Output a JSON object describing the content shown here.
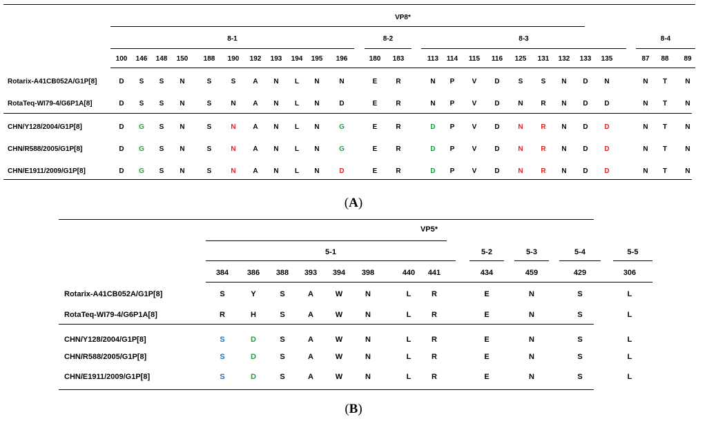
{
  "panel_a": {
    "main_title": "VP8*",
    "groups": [
      {
        "label": "8-1",
        "cols": [
          "100",
          "146",
          "148",
          "150",
          "188",
          "190",
          "192",
          "193",
          "194",
          "195",
          "196"
        ]
      },
      {
        "label": "8-2",
        "cols": [
          "180",
          "183"
        ]
      },
      {
        "label": "8-3",
        "cols": [
          "113",
          "114",
          "115",
          "116",
          "125",
          "131",
          "132",
          "133",
          "135"
        ]
      },
      {
        "label": "8-4",
        "cols": [
          "87",
          "88",
          "89"
        ]
      }
    ],
    "rows": [
      {
        "name": "Rotarix-A41CB052A/G1P[8]",
        "values": [
          "D",
          "S",
          "S",
          "N",
          "S",
          "S",
          "A",
          "N",
          "L",
          "N",
          "N",
          "E",
          "R",
          "N",
          "P",
          "V",
          "D",
          "S",
          "S",
          "N",
          "D",
          "N",
          "N",
          "T",
          "N"
        ]
      },
      {
        "name": "RotaTeq-WI79-4/G6P1A[8]",
        "values": [
          "D",
          "S",
          "S",
          "N",
          "S",
          "N",
          "A",
          "N",
          "L",
          "N",
          "D",
          "E",
          "R",
          "N",
          "P",
          "V",
          "D",
          "N",
          "R",
          "N",
          "D",
          "D",
          "N",
          "T",
          "N"
        ]
      },
      {
        "name": "CHN/Y128/2004/G1P[8]",
        "values": [
          "D",
          "G",
          "S",
          "N",
          "S",
          "N",
          "A",
          "N",
          "L",
          "N",
          "G",
          "E",
          "R",
          "D",
          "P",
          "V",
          "D",
          "N",
          "R",
          "N",
          "D",
          "D",
          "N",
          "T",
          "N"
        ]
      },
      {
        "name": "CHN/R588/2005/G1P[8]",
        "values": [
          "D",
          "G",
          "S",
          "N",
          "S",
          "N",
          "A",
          "N",
          "L",
          "N",
          "G",
          "E",
          "R",
          "D",
          "P",
          "V",
          "D",
          "N",
          "R",
          "N",
          "D",
          "D",
          "N",
          "T",
          "N"
        ]
      },
      {
        "name": "CHN/E1911/2009/G1P[8]",
        "values": [
          "D",
          "G",
          "S",
          "N",
          "S",
          "N",
          "A",
          "N",
          "L",
          "N",
          "D",
          "E",
          "R",
          "D",
          "P",
          "V",
          "D",
          "N",
          "R",
          "N",
          "D",
          "D",
          "N",
          "T",
          "N"
        ]
      }
    ],
    "highlights": [
      {
        "row": 2,
        "col": 1,
        "color": "#1e9e3e"
      },
      {
        "row": 2,
        "col": 5,
        "color": "#e02020"
      },
      {
        "row": 2,
        "col": 10,
        "color": "#1e9e3e"
      },
      {
        "row": 2,
        "col": 13,
        "color": "#1e9e3e"
      },
      {
        "row": 2,
        "col": 17,
        "color": "#e02020"
      },
      {
        "row": 2,
        "col": 18,
        "color": "#e02020"
      },
      {
        "row": 2,
        "col": 21,
        "color": "#e02020"
      },
      {
        "row": 3,
        "col": 1,
        "color": "#1e9e3e"
      },
      {
        "row": 3,
        "col": 5,
        "color": "#e02020"
      },
      {
        "row": 3,
        "col": 10,
        "color": "#1e9e3e"
      },
      {
        "row": 3,
        "col": 13,
        "color": "#1e9e3e"
      },
      {
        "row": 3,
        "col": 17,
        "color": "#e02020"
      },
      {
        "row": 3,
        "col": 18,
        "color": "#e02020"
      },
      {
        "row": 3,
        "col": 21,
        "color": "#e02020"
      },
      {
        "row": 4,
        "col": 1,
        "color": "#1e9e3e"
      },
      {
        "row": 4,
        "col": 5,
        "color": "#e02020"
      },
      {
        "row": 4,
        "col": 10,
        "color": "#e02020"
      },
      {
        "row": 4,
        "col": 13,
        "color": "#1e9e3e"
      },
      {
        "row": 4,
        "col": 17,
        "color": "#e02020"
      },
      {
        "row": 4,
        "col": 18,
        "color": "#e02020"
      },
      {
        "row": 4,
        "col": 21,
        "color": "#e02020"
      }
    ],
    "caption": "A"
  },
  "panel_b": {
    "main_title": "VP5*",
    "groups": [
      {
        "label": "5-1",
        "cols": [
          "384",
          "386",
          "388",
          "393",
          "394",
          "398",
          "440",
          "441"
        ]
      },
      {
        "label": "5-2",
        "cols": [
          "434"
        ]
      },
      {
        "label": "5-3",
        "cols": [
          "459"
        ]
      },
      {
        "label": "5-4",
        "cols": [
          "429"
        ]
      },
      {
        "label": "5-5",
        "cols": [
          "306"
        ]
      }
    ],
    "rows": [
      {
        "name": "Rotarix-A41CB052A/G1P[8]",
        "values": [
          "S",
          "Y",
          "S",
          "A",
          "W",
          "N",
          "L",
          "R",
          "E",
          "N",
          "S",
          "L"
        ]
      },
      {
        "name": "RotaTeq-WI79-4/G6P1A[8]",
        "values": [
          "R",
          "H",
          "S",
          "A",
          "W",
          "N",
          "L",
          "R",
          "E",
          "N",
          "S",
          "L"
        ]
      },
      {
        "name": "CHN/Y128/2004/G1P[8]",
        "values": [
          "S",
          "D",
          "S",
          "A",
          "W",
          "N",
          "L",
          "R",
          "E",
          "N",
          "S",
          "L"
        ]
      },
      {
        "name": "CHN/R588/2005/G1P[8]",
        "values": [
          "S",
          "D",
          "S",
          "A",
          "W",
          "N",
          "L",
          "R",
          "E",
          "N",
          "S",
          "L"
        ]
      },
      {
        "name": "CHN/E1911/2009/G1P[8]",
        "values": [
          "S",
          "D",
          "S",
          "A",
          "W",
          "N",
          "L",
          "R",
          "E",
          "N",
          "S",
          "L"
        ]
      }
    ],
    "highlights": [
      {
        "row": 2,
        "col": 0,
        "color": "#1f6fb4"
      },
      {
        "row": 2,
        "col": 1,
        "color": "#1e9e3e"
      },
      {
        "row": 3,
        "col": 0,
        "color": "#1f6fb4"
      },
      {
        "row": 3,
        "col": 1,
        "color": "#1e9e3e"
      },
      {
        "row": 4,
        "col": 0,
        "color": "#1f6fb4"
      },
      {
        "row": 4,
        "col": 1,
        "color": "#1e9e3e"
      }
    ],
    "caption": "B"
  }
}
